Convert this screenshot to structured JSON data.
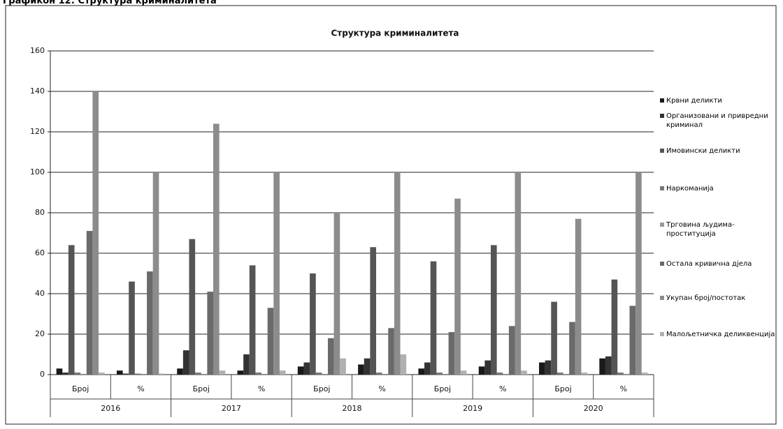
{
  "heading": "Графикон 12: Структура криминалитета",
  "chart_data": {
    "type": "bar",
    "title": "Структура криминалитета",
    "categories": [
      "Број",
      "%",
      "Број",
      "%",
      "Број",
      "%",
      "Број",
      "%",
      "Број",
      "%"
    ],
    "groups": [
      "2016",
      "2017",
      "2018",
      "2019",
      "2020"
    ],
    "ylim": [
      0,
      160
    ],
    "yticks": [
      0,
      20,
      40,
      60,
      80,
      100,
      120,
      140,
      160
    ],
    "grid": true,
    "legend": "right",
    "series": [
      {
        "name": "Крвни деликти",
        "color": "#1a1a1a",
        "values": [
          3,
          2,
          3,
          2,
          4,
          5,
          3,
          4,
          6,
          8
        ]
      },
      {
        "name": "Организовани и привредни криминал",
        "color": "#333333",
        "values": [
          1,
          0.5,
          12,
          10,
          6,
          8,
          6,
          7,
          7,
          9
        ]
      },
      {
        "name": "Имовински деликти",
        "color": "#555555",
        "values": [
          64,
          46,
          67,
          54,
          50,
          63,
          56,
          64,
          36,
          47
        ]
      },
      {
        "name": "Наркоманија",
        "color": "#777777",
        "values": [
          1,
          0.5,
          1,
          1,
          1,
          1,
          1,
          1,
          1,
          1
        ]
      },
      {
        "name": "Трговина људима-проституција",
        "color": "#999999",
        "values": [
          0,
          0,
          0,
          0,
          0,
          0,
          0,
          0,
          0,
          0
        ]
      },
      {
        "name": "Остала кривична дјела",
        "color": "#6a6a6a",
        "values": [
          71,
          51,
          41,
          33,
          18,
          23,
          21,
          24,
          26,
          34
        ]
      },
      {
        "name": "Укупан број/постотак",
        "color": "#8c8c8c",
        "values": [
          140,
          100,
          124,
          100,
          80,
          100,
          87,
          100,
          77,
          100
        ]
      },
      {
        "name": "Малољетничка деликвенција",
        "color": "#b0b0b0",
        "values": [
          1,
          0.5,
          2,
          2,
          8,
          10,
          2,
          2,
          1,
          1
        ]
      }
    ]
  }
}
